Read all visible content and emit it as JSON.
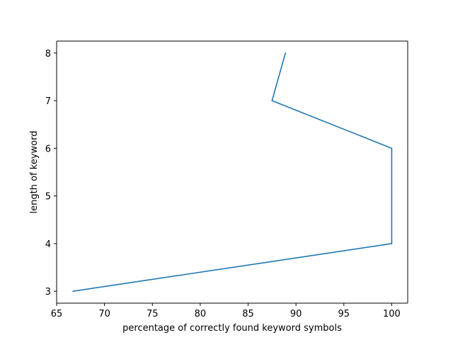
{
  "chart_data": {
    "type": "line",
    "title": "",
    "xlabel": "percentage of correctly found keyword symbols",
    "ylabel": "length of keyword",
    "xlim": [
      65,
      101.67
    ],
    "ylim": [
      2.75,
      8.25
    ],
    "xticks": [
      65,
      70,
      75,
      80,
      85,
      90,
      95,
      100
    ],
    "yticks": [
      3,
      4,
      5,
      6,
      7,
      8
    ],
    "xtick_labels": [
      "65",
      "70",
      "75",
      "80",
      "85",
      "90",
      "95",
      "100"
    ],
    "ytick_labels": [
      "3",
      "4",
      "5",
      "6",
      "7",
      "8"
    ],
    "grid": false,
    "series": [
      {
        "color": "#1f77b4",
        "points": [
          {
            "x": 66.7,
            "y": 3
          },
          {
            "x": 100,
            "y": 4
          },
          {
            "x": 100,
            "y": 5
          },
          {
            "x": 100,
            "y": 6
          },
          {
            "x": 87.5,
            "y": 7
          },
          {
            "x": 88.9,
            "y": 8
          }
        ]
      }
    ]
  }
}
